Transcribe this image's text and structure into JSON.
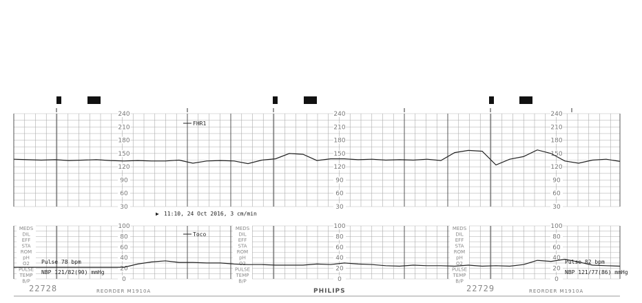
{
  "chart_data": [
    {
      "type": "line",
      "panel": "fetal heart rate",
      "series": [
        {
          "name": "FHR1",
          "values": [
            137,
            136,
            135,
            136,
            134,
            135,
            136,
            134,
            133,
            134,
            133,
            133,
            135,
            128,
            133,
            134,
            133,
            127,
            135,
            138,
            150,
            148,
            134,
            138,
            138,
            136,
            137,
            135,
            136,
            135,
            137,
            134,
            152,
            157,
            155,
            124,
            137,
            143,
            158,
            150,
            133,
            128,
            135,
            137,
            132
          ]
        }
      ],
      "ylim": [
        30,
        240
      ],
      "yticks": [
        "240",
        "210",
        "180",
        "150",
        "120",
        "90",
        "60",
        "30"
      ],
      "grid": true,
      "color": "#222222"
    },
    {
      "type": "line",
      "panel": "uterine activity",
      "series": [
        {
          "name": "Toco",
          "values": [
            22,
            22,
            22,
            22,
            22,
            22,
            22,
            22,
            22,
            28,
            32,
            34,
            31,
            31,
            30,
            30,
            28,
            27,
            27,
            26,
            26,
            26,
            28,
            27,
            30,
            28,
            27,
            25,
            24,
            26,
            25,
            25,
            24,
            26,
            24,
            25,
            24,
            27,
            35,
            33,
            37,
            32,
            26,
            25,
            24
          ]
        }
      ],
      "ylim": [
        0,
        100
      ],
      "yticks": [
        "100",
        "80",
        "60",
        "40",
        "20",
        "0"
      ],
      "grid": true,
      "color": "#222222"
    }
  ],
  "annotations": {
    "fhr_legend": "FHR1",
    "toco_legend": "Toco",
    "timestamp": "11:10, 24 Oct 2016, 3 cm/min",
    "pulse1": "Pulse 78 bpm",
    "nbp1": "NBP 121/82(90) mmHg",
    "pulse2": "Pulse 82 bpm",
    "nbp2": "NBP 121/77(86) mmHg"
  },
  "side_labels": [
    "MEDS",
    "DIL",
    "EFF",
    "STA",
    "ROM",
    "pH",
    "O2",
    "PULSE",
    "TEMP",
    "B/P"
  ],
  "footer": {
    "page1": "22728",
    "page2": "22729",
    "reorder1": "REORDER M1910A",
    "reorder2": "REORDER M1910A",
    "brand": "PHILIPS"
  }
}
